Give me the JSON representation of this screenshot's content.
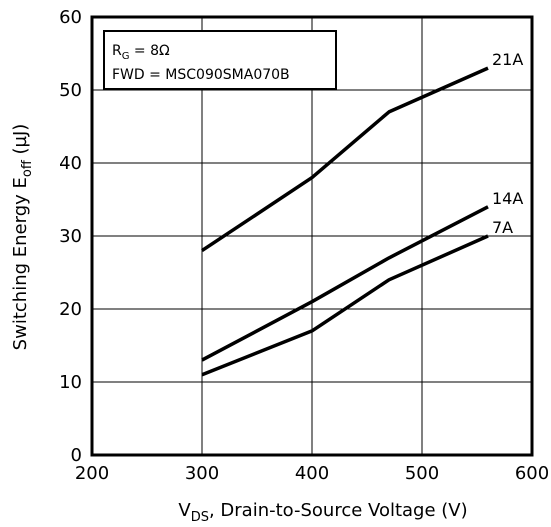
{
  "chart_data": {
    "type": "line",
    "title": "",
    "xlabel": {
      "main": "V",
      "sub": "DS",
      "rest": ", Drain-to-Source Voltage (V)"
    },
    "ylabel": {
      "main": "Switching Energy E",
      "sub": "off",
      "rest": " (µJ)"
    },
    "xlim": [
      200,
      600
    ],
    "ylim": [
      0,
      60
    ],
    "xticks": [
      200,
      300,
      400,
      500,
      600
    ],
    "yticks": [
      0,
      10,
      20,
      30,
      40,
      50,
      60
    ],
    "grid": true,
    "series": [
      {
        "name": "21A",
        "x": [
          300,
          400,
          470,
          560
        ],
        "y": [
          28,
          38,
          47,
          53
        ]
      },
      {
        "name": "14A",
        "x": [
          300,
          400,
          470,
          560
        ],
        "y": [
          13,
          21,
          27,
          34
        ]
      },
      {
        "name": "7A",
        "x": [
          300,
          400,
          470,
          560
        ],
        "y": [
          11,
          17,
          24,
          30
        ]
      }
    ],
    "annotation": {
      "line1_main": "R",
      "line1_sub": "G",
      "line1_rest": " = 8Ω",
      "line2": "FWD = MSC090SMA070B"
    }
  }
}
